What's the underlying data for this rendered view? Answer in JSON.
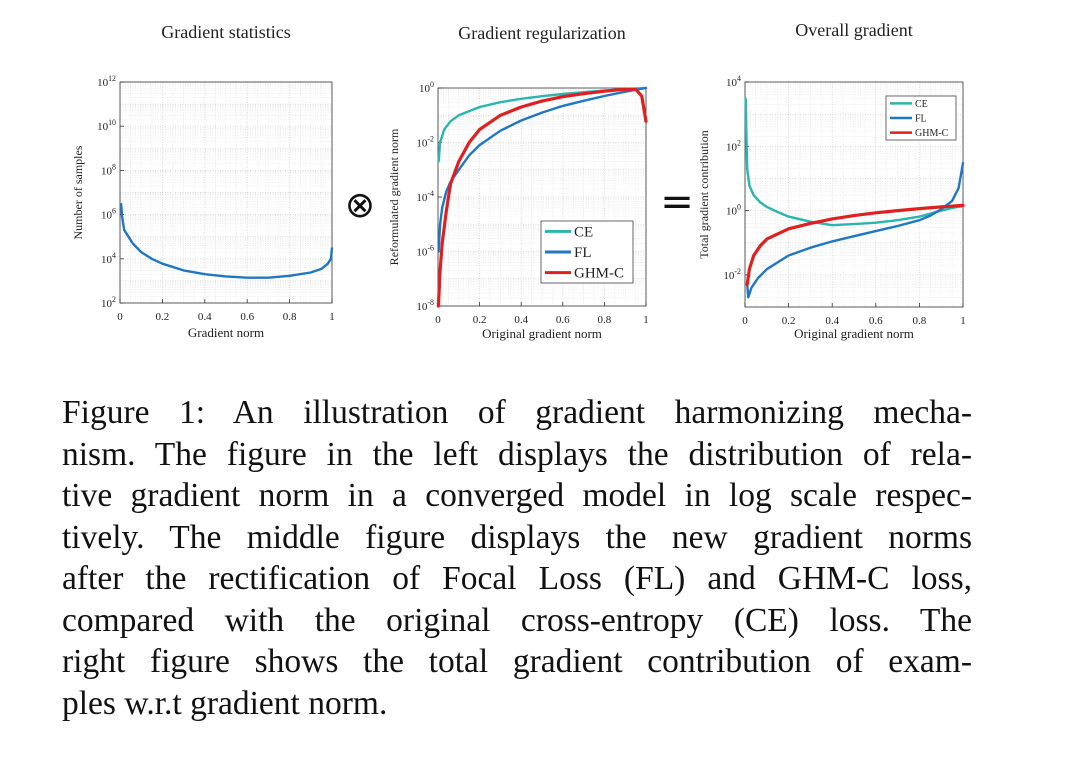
{
  "chart_data": [
    {
      "type": "line",
      "title": "Gradient statistics",
      "xlabel": "Gradient norm",
      "ylabel": "Number of samples",
      "xlim": [
        0,
        1
      ],
      "ylim": [
        100,
        1000000000000
      ],
      "yscale": "log",
      "xticks": [
        "0",
        "0.2",
        "0.4",
        "0.6",
        "0.8",
        "1"
      ],
      "yticks": [
        "10^2",
        "10^4",
        "10^6",
        "10^8",
        "10^10",
        "10^12"
      ],
      "grid": true,
      "series": [
        {
          "color": "#1f77c4",
          "x": [
            0.005,
            0.01,
            0.02,
            0.04,
            0.06,
            0.1,
            0.15,
            0.2,
            0.3,
            0.4,
            0.5,
            0.6,
            0.7,
            0.8,
            0.9,
            0.95,
            0.98,
            0.995,
            1.0
          ],
          "y": [
            3000000,
            800000,
            200000,
            100000,
            50000,
            20000,
            10000,
            6000,
            3000,
            2000,
            1600,
            1400,
            1400,
            1700,
            2400,
            3500,
            6000,
            10000,
            30000
          ]
        }
      ]
    },
    {
      "type": "line",
      "title": "Gradient regularization",
      "xlabel": "Original gradient norm",
      "ylabel": "Reformulated gradient norm",
      "xlim": [
        0,
        1
      ],
      "ylim": [
        1e-08,
        1
      ],
      "yscale": "log",
      "xticks": [
        "0",
        "0.2",
        "0.4",
        "0.6",
        "0.8",
        "1"
      ],
      "yticks": [
        "10^-8",
        "10^-6",
        "10^-4",
        "10^-2",
        "10^0"
      ],
      "grid": true,
      "legend_position": "bottom-right",
      "series": [
        {
          "name": "CE",
          "color": "#2ab5b0",
          "x": [
            0.003,
            0.01,
            0.03,
            0.06,
            0.1,
            0.2,
            0.3,
            0.4,
            0.5,
            0.6,
            0.7,
            0.8,
            0.9,
            1.0
          ],
          "y": [
            0.002,
            0.01,
            0.03,
            0.06,
            0.1,
            0.2,
            0.3,
            0.4,
            0.5,
            0.6,
            0.7,
            0.8,
            0.9,
            1.0
          ]
        },
        {
          "name": "FL",
          "color": "#1f77c4",
          "x": [
            0.003,
            0.01,
            0.02,
            0.04,
            0.06,
            0.1,
            0.15,
            0.2,
            0.3,
            0.4,
            0.5,
            0.6,
            0.7,
            0.8,
            0.9,
            1.0
          ],
          "y": [
            1e-06,
            1e-05,
            4e-05,
            0.00016,
            0.00036,
            0.001,
            0.0034,
            0.008,
            0.027,
            0.064,
            0.125,
            0.22,
            0.34,
            0.51,
            0.73,
            1.0
          ]
        },
        {
          "name": "GHM-C",
          "color": "#e02020",
          "x": [
            0.002,
            0.01,
            0.02,
            0.04,
            0.06,
            0.1,
            0.15,
            0.2,
            0.3,
            0.4,
            0.5,
            0.6,
            0.7,
            0.8,
            0.9,
            0.95,
            0.98,
            1.0
          ],
          "y": [
            1e-08,
            2e-07,
            2e-06,
            3e-05,
            0.0003,
            0.002,
            0.01,
            0.03,
            0.1,
            0.2,
            0.33,
            0.48,
            0.62,
            0.76,
            0.9,
            0.9,
            0.5,
            0.06
          ]
        }
      ]
    },
    {
      "type": "line",
      "title": "Overall gradient",
      "xlabel": "Original gradient norm",
      "ylabel": "Total gradient contribution",
      "xlim": [
        0,
        1
      ],
      "ylim": [
        0.001,
        10000
      ],
      "yscale": "log",
      "xticks": [
        "0",
        "0.2",
        "0.4",
        "0.6",
        "0.8",
        "1"
      ],
      "yticks": [
        "10^-2",
        "10^0",
        "10^2",
        "10^4"
      ],
      "grid": true,
      "legend_position": "top-right",
      "series": [
        {
          "name": "CE",
          "color": "#2ab5b0",
          "x": [
            0.003,
            0.006,
            0.01,
            0.02,
            0.04,
            0.07,
            0.1,
            0.15,
            0.2,
            0.3,
            0.4,
            0.5,
            0.6,
            0.7,
            0.8,
            0.85,
            0.9,
            0.95,
            1.0
          ],
          "y": [
            3000,
            300,
            20,
            6,
            3,
            1.8,
            1.3,
            0.9,
            0.65,
            0.45,
            0.35,
            0.38,
            0.42,
            0.5,
            0.65,
            0.8,
            1.0,
            1.2,
            1.4
          ]
        },
        {
          "name": "FL",
          "color": "#1f77c4",
          "x": [
            0.01,
            0.015,
            0.03,
            0.06,
            0.1,
            0.2,
            0.3,
            0.4,
            0.5,
            0.6,
            0.7,
            0.8,
            0.85,
            0.9,
            0.95,
            0.98,
            1.0
          ],
          "y": [
            0.005,
            0.002,
            0.004,
            0.008,
            0.015,
            0.04,
            0.07,
            0.11,
            0.16,
            0.23,
            0.33,
            0.5,
            0.7,
            1.1,
            2.0,
            5.0,
            30
          ]
        },
        {
          "name": "GHM-C",
          "color": "#e02020",
          "x": [
            0.01,
            0.02,
            0.04,
            0.07,
            0.1,
            0.2,
            0.3,
            0.4,
            0.5,
            0.6,
            0.7,
            0.8,
            0.9,
            1.0
          ],
          "y": [
            0.005,
            0.015,
            0.04,
            0.08,
            0.13,
            0.27,
            0.4,
            0.55,
            0.7,
            0.85,
            1.0,
            1.15,
            1.3,
            1.45
          ]
        }
      ]
    }
  ],
  "operators": {
    "times": "⊗",
    "equals": "="
  },
  "caption": {
    "lines": [
      "Figure 1: An illustration of gradient harmonizing mecha-",
      "nism. The figure in the left displays the distribution of rela-",
      "tive gradient norm in a converged model in log scale respec-",
      "tively. The middle figure displays the new gradient norms",
      "after the rectification of Focal Loss (FL) and GHM-C loss,",
      "compared with the original cross-entropy (CE) loss. The",
      "right figure shows the total gradient contribution of exam-",
      "ples w.r.t gradient norm."
    ]
  }
}
